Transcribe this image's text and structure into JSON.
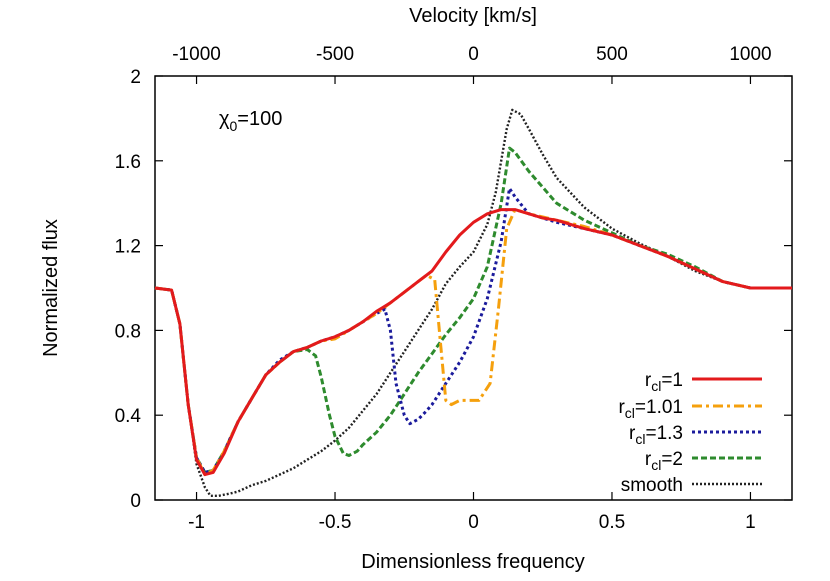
{
  "chart_data": {
    "type": "line",
    "xlabel": "Dimensionless frequency",
    "ylabel": "Normalized flux",
    "x2label": "Velocity [km/s]",
    "xlim": [
      -1.15,
      1.15
    ],
    "ylim": [
      0,
      2
    ],
    "x2lim": [
      -1150,
      1150
    ],
    "xticks": [
      -1,
      -0.5,
      0,
      0.5,
      1
    ],
    "xtick_labels": [
      "-1",
      "-0.5",
      "0",
      "0.5",
      "1"
    ],
    "yticks": [
      0,
      0.4,
      0.8,
      1.2,
      1.6,
      2
    ],
    "ytick_labels": [
      "0",
      "0.4",
      "0.8",
      "1.2",
      "1.6",
      "2"
    ],
    "x2ticks": [
      -1000,
      -500,
      0,
      500,
      1000
    ],
    "x2tick_labels": [
      "-1000",
      "-500",
      "0",
      "500",
      "1000"
    ],
    "annotation": {
      "base": "χ",
      "sub": "0",
      "tail": "=100"
    },
    "legend_position": "bottom-right",
    "grid": false,
    "series": [
      {
        "label_base": "r",
        "label_sub": "cl",
        "label_tail": "=1",
        "color": "#e31a1c",
        "dash": "",
        "width": 3,
        "x": [
          -1.15,
          -1.09,
          -1.06,
          -1.03,
          -1.0,
          -0.97,
          -0.94,
          -0.9,
          -0.85,
          -0.8,
          -0.75,
          -0.7,
          -0.65,
          -0.6,
          -0.55,
          -0.5,
          -0.45,
          -0.4,
          -0.35,
          -0.3,
          -0.25,
          -0.2,
          -0.15,
          -0.1,
          -0.05,
          0,
          0.05,
          0.1,
          0.15,
          0.2,
          0.25,
          0.3,
          0.4,
          0.5,
          0.6,
          0.7,
          0.8,
          0.9,
          1.0,
          1.15
        ],
        "y": [
          1.0,
          0.99,
          0.83,
          0.45,
          0.19,
          0.12,
          0.13,
          0.22,
          0.37,
          0.48,
          0.59,
          0.65,
          0.7,
          0.72,
          0.75,
          0.77,
          0.8,
          0.84,
          0.89,
          0.93,
          0.98,
          1.03,
          1.08,
          1.17,
          1.25,
          1.31,
          1.35,
          1.37,
          1.37,
          1.35,
          1.33,
          1.32,
          1.28,
          1.25,
          1.2,
          1.15,
          1.09,
          1.03,
          1.0,
          1.0
        ]
      },
      {
        "label_base": "r",
        "label_sub": "cl",
        "label_tail": "=1.01",
        "color": "#f5a00d",
        "dash": "10 4 3 4",
        "width": 3,
        "x": [
          -1.15,
          -1.09,
          -1.06,
          -1.03,
          -1.0,
          -0.97,
          -0.94,
          -0.9,
          -0.85,
          -0.8,
          -0.75,
          -0.7,
          -0.65,
          -0.6,
          -0.55,
          -0.5,
          -0.45,
          -0.4,
          -0.35,
          -0.3,
          -0.25,
          -0.2,
          -0.17,
          -0.14,
          -0.12,
          -0.1,
          -0.08,
          -0.05,
          -0.02,
          0.02,
          0.06,
          0.09,
          0.12,
          0.15,
          0.2,
          0.3,
          0.4,
          0.5,
          0.6,
          0.7,
          0.8,
          0.9,
          1.0,
          1.15
        ],
        "y": [
          1.0,
          0.99,
          0.83,
          0.45,
          0.2,
          0.12,
          0.14,
          0.23,
          0.37,
          0.48,
          0.59,
          0.65,
          0.7,
          0.72,
          0.75,
          0.76,
          0.8,
          0.84,
          0.88,
          0.93,
          0.98,
          1.03,
          1.06,
          1.04,
          0.75,
          0.47,
          0.45,
          0.47,
          0.47,
          0.47,
          0.55,
          0.9,
          1.28,
          1.37,
          1.35,
          1.32,
          1.29,
          1.25,
          1.2,
          1.15,
          1.09,
          1.03,
          1.0,
          1.0
        ]
      },
      {
        "label_base": "r",
        "label_sub": "cl",
        "label_tail": "=1.3",
        "color": "#1b1b9c",
        "dash": "3 3",
        "width": 3,
        "x": [
          -1.15,
          -1.09,
          -1.06,
          -1.03,
          -1.0,
          -0.97,
          -0.94,
          -0.9,
          -0.85,
          -0.8,
          -0.75,
          -0.7,
          -0.65,
          -0.6,
          -0.55,
          -0.5,
          -0.45,
          -0.4,
          -0.35,
          -0.32,
          -0.3,
          -0.28,
          -0.25,
          -0.23,
          -0.2,
          -0.17,
          -0.15,
          -0.1,
          -0.05,
          0,
          0.05,
          0.1,
          0.13,
          0.15,
          0.18,
          0.2,
          0.3,
          0.4,
          0.5,
          0.6,
          0.7,
          0.8,
          0.9,
          1.0,
          1.15
        ],
        "y": [
          1.0,
          0.99,
          0.83,
          0.45,
          0.2,
          0.13,
          0.14,
          0.23,
          0.37,
          0.48,
          0.59,
          0.66,
          0.7,
          0.72,
          0.75,
          0.77,
          0.8,
          0.84,
          0.88,
          0.9,
          0.8,
          0.55,
          0.4,
          0.36,
          0.38,
          0.42,
          0.45,
          0.55,
          0.65,
          0.77,
          0.95,
          1.22,
          1.47,
          1.43,
          1.38,
          1.35,
          1.31,
          1.28,
          1.25,
          1.2,
          1.15,
          1.09,
          1.03,
          1.0,
          1.0
        ]
      },
      {
        "label_base": "r",
        "label_sub": "cl",
        "label_tail": "=2",
        "color": "#2e8b2e",
        "dash": "6 3",
        "width": 3,
        "x": [
          -1.15,
          -1.09,
          -1.06,
          -1.03,
          -1.0,
          -0.97,
          -0.94,
          -0.9,
          -0.85,
          -0.8,
          -0.75,
          -0.7,
          -0.65,
          -0.6,
          -0.57,
          -0.55,
          -0.52,
          -0.5,
          -0.47,
          -0.45,
          -0.42,
          -0.4,
          -0.35,
          -0.3,
          -0.25,
          -0.2,
          -0.15,
          -0.1,
          -0.05,
          0,
          0.05,
          0.1,
          0.13,
          0.15,
          0.2,
          0.3,
          0.4,
          0.5,
          0.6,
          0.7,
          0.8,
          0.9,
          1.0,
          1.15
        ],
        "y": [
          1.0,
          0.99,
          0.83,
          0.45,
          0.2,
          0.13,
          0.14,
          0.23,
          0.37,
          0.48,
          0.59,
          0.65,
          0.7,
          0.71,
          0.68,
          0.58,
          0.4,
          0.3,
          0.22,
          0.21,
          0.23,
          0.26,
          0.32,
          0.4,
          0.5,
          0.6,
          0.69,
          0.78,
          0.86,
          0.95,
          1.1,
          1.4,
          1.66,
          1.64,
          1.55,
          1.4,
          1.32,
          1.26,
          1.2,
          1.16,
          1.1,
          1.03,
          1.0,
          1.0
        ]
      },
      {
        "label_base": "smooth",
        "label_sub": "",
        "label_tail": "",
        "color": "#222222",
        "dash": "2 2",
        "width": 2.4,
        "x": [
          -1.15,
          -1.09,
          -1.06,
          -1.03,
          -1.0,
          -0.97,
          -0.95,
          -0.92,
          -0.88,
          -0.85,
          -0.8,
          -0.75,
          -0.7,
          -0.65,
          -0.6,
          -0.55,
          -0.5,
          -0.45,
          -0.4,
          -0.35,
          -0.3,
          -0.25,
          -0.2,
          -0.15,
          -0.1,
          -0.05,
          0,
          0.05,
          0.08,
          0.1,
          0.12,
          0.14,
          0.17,
          0.2,
          0.25,
          0.3,
          0.35,
          0.4,
          0.5,
          0.6,
          0.7,
          0.8,
          0.9,
          1.0,
          1.15
        ],
        "y": [
          1.0,
          0.99,
          0.83,
          0.45,
          0.17,
          0.06,
          0.02,
          0.02,
          0.03,
          0.04,
          0.07,
          0.09,
          0.12,
          0.15,
          0.19,
          0.23,
          0.28,
          0.34,
          0.42,
          0.5,
          0.6,
          0.7,
          0.8,
          0.9,
          1.02,
          1.1,
          1.17,
          1.3,
          1.45,
          1.6,
          1.75,
          1.84,
          1.82,
          1.75,
          1.63,
          1.52,
          1.45,
          1.38,
          1.28,
          1.21,
          1.15,
          1.08,
          1.03,
          1.0,
          1.0
        ]
      }
    ]
  }
}
